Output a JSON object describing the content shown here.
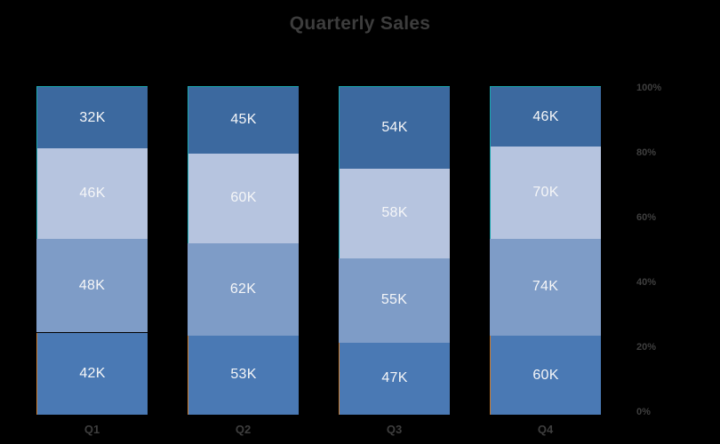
{
  "title": "Quarterly Sales",
  "chart_data": {
    "type": "bar",
    "variant": "100-percent-stacked-column",
    "title": "Quarterly Sales",
    "categories": [
      "Q1",
      "Q2",
      "Q3",
      "Q4"
    ],
    "stacks": [
      {
        "category": "Q1",
        "segments_top_to_bottom": [
          {
            "label": "32K",
            "value": 32
          },
          {
            "label": "46K",
            "value": 46
          },
          {
            "label": "48K",
            "value": 48
          },
          {
            "label": "42K",
            "value": 42
          }
        ]
      },
      {
        "category": "Q2",
        "segments_top_to_bottom": [
          {
            "label": "45K",
            "value": 45
          },
          {
            "label": "60K",
            "value": 60
          },
          {
            "label": "62K",
            "value": 62
          },
          {
            "label": "53K",
            "value": 53
          }
        ]
      },
      {
        "category": "Q3",
        "segments_top_to_bottom": [
          {
            "label": "54K",
            "value": 54
          },
          {
            "label": "58K",
            "value": 58
          },
          {
            "label": "55K",
            "value": 55
          },
          {
            "label": "47K",
            "value": 47
          }
        ]
      },
      {
        "category": "Q4",
        "segments_top_to_bottom": [
          {
            "label": "46K",
            "value": 46
          },
          {
            "label": "70K",
            "value": 70
          },
          {
            "label": "74K",
            "value": 74
          },
          {
            "label": "60K",
            "value": 60
          }
        ]
      }
    ],
    "y_axis": {
      "side": "right",
      "ticks": [
        "100%",
        "80%",
        "60%",
        "40%",
        "20%",
        "0%"
      ],
      "range_percent": [
        0,
        100
      ]
    },
    "grid": false,
    "legend": false,
    "colors": {
      "segments_top_to_bottom": [
        "#3c699f",
        "#b6c4df",
        "#7e9cc7",
        "#4a79b4"
      ],
      "segment_edge_top_to_bottom": [
        "#1aa7ae",
        "#1aa7ae",
        "none",
        "#c97b2d"
      ],
      "segment_label_text": "#f5f6f8",
      "background": "#000000",
      "axis_text": "#3f3f3f",
      "title_text": "#3d3d3d"
    }
  }
}
